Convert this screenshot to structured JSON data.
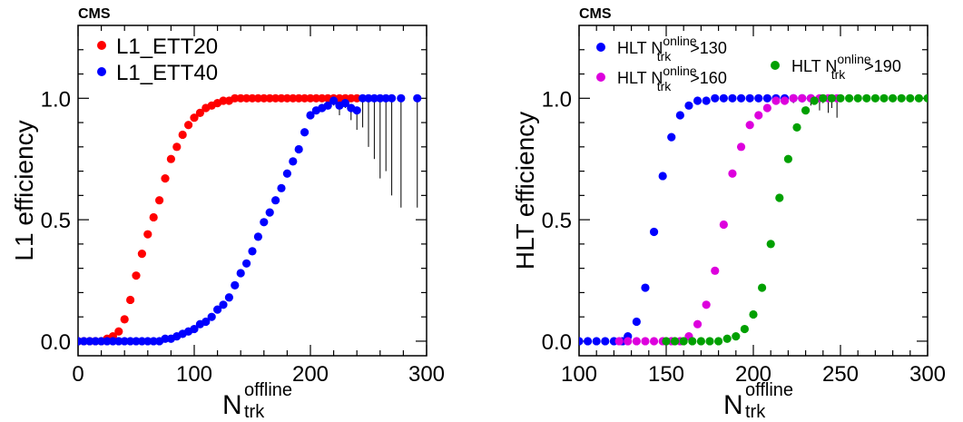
{
  "chart_data": [
    {
      "type": "scatter",
      "label": "CMS",
      "xlabel": "N",
      "xlabel_sub": "trk",
      "xlabel_sup": "offline",
      "ylabel": "L1 efficiency",
      "xlim": [
        0,
        300
      ],
      "ylim": [
        -0.06,
        1.3
      ],
      "xticks": [
        0,
        100,
        200,
        300
      ],
      "yticks": [
        0.0,
        0.5,
        1.0
      ],
      "xtick_labels": [
        "0",
        "100",
        "200",
        "300"
      ],
      "ytick_labels": [
        "0.0",
        "0.5",
        "1.0"
      ],
      "grid": false,
      "legend_position": "top-left",
      "series": [
        {
          "name": "L1_ETT20",
          "color": "#ff0000",
          "x": [
            0,
            5,
            10,
            15,
            20,
            25,
            30,
            35,
            40,
            45,
            50,
            55,
            60,
            65,
            70,
            75,
            80,
            85,
            90,
            95,
            100,
            105,
            110,
            115,
            120,
            125,
            130,
            135,
            140,
            145,
            150,
            155,
            160,
            165,
            170,
            175,
            180,
            185,
            190,
            195,
            200,
            205,
            210,
            215,
            220,
            225,
            230,
            235,
            240
          ],
          "y": [
            0.0,
            0.0,
            0.0,
            0.0,
            0.0,
            0.01,
            0.02,
            0.04,
            0.09,
            0.17,
            0.27,
            0.36,
            0.44,
            0.51,
            0.58,
            0.67,
            0.75,
            0.8,
            0.85,
            0.89,
            0.92,
            0.94,
            0.96,
            0.97,
            0.98,
            0.99,
            0.99,
            1.0,
            1.0,
            1.0,
            1.0,
            1.0,
            1.0,
            1.0,
            1.0,
            1.0,
            1.0,
            1.0,
            1.0,
            1.0,
            1.0,
            1.0,
            1.0,
            1.0,
            1.0,
            1.0,
            1.0,
            1.0,
            1.0
          ],
          "err_low": []
        },
        {
          "name": "L1_ETT40",
          "color": "#0000ff",
          "x": [
            0,
            5,
            10,
            15,
            20,
            25,
            30,
            35,
            40,
            45,
            50,
            55,
            60,
            65,
            70,
            75,
            80,
            85,
            90,
            95,
            100,
            105,
            110,
            115,
            120,
            125,
            130,
            135,
            140,
            145,
            150,
            155,
            160,
            165,
            170,
            175,
            180,
            185,
            190,
            195,
            200,
            205,
            210,
            215,
            220,
            225,
            230,
            235,
            240,
            245,
            250,
            255,
            260,
            265,
            270,
            278,
            292
          ],
          "y": [
            0.0,
            0.0,
            0.0,
            0.0,
            0.0,
            0.0,
            0.0,
            0.0,
            0.0,
            0.0,
            0.0,
            0.0,
            0.0,
            0.0,
            0.0,
            0.01,
            0.01,
            0.02,
            0.03,
            0.04,
            0.05,
            0.07,
            0.08,
            0.1,
            0.13,
            0.15,
            0.18,
            0.23,
            0.28,
            0.32,
            0.37,
            0.43,
            0.49,
            0.53,
            0.58,
            0.63,
            0.69,
            0.74,
            0.79,
            0.86,
            0.93,
            0.95,
            0.96,
            0.97,
            0.99,
            0.97,
            0.98,
            0.96,
            0.95,
            1.0,
            1.0,
            1.0,
            1.0,
            1.0,
            1.0,
            1.0,
            1.0
          ],
          "err_low": [
            0,
            0,
            0,
            0,
            0,
            0,
            0,
            0,
            0,
            0,
            0,
            0,
            0,
            0,
            0,
            0,
            0,
            0,
            0,
            0,
            0,
            0,
            0,
            0,
            0,
            0,
            0,
            0,
            0,
            0,
            0,
            0,
            0,
            0,
            0,
            0,
            0,
            0,
            0,
            0,
            0,
            0,
            0,
            0,
            0.02,
            0.04,
            0.02,
            0.05,
            0.08,
            0.12,
            0.2,
            0.25,
            0.33,
            0.3,
            0.4,
            0.45,
            0.45
          ]
        }
      ]
    },
    {
      "type": "scatter",
      "label": "CMS",
      "xlabel": "N",
      "xlabel_sub": "trk",
      "xlabel_sup": "offline",
      "ylabel": "HLT efficiency",
      "xlim": [
        100,
        300
      ],
      "ylim": [
        -0.06,
        1.3
      ],
      "xticks": [
        100,
        150,
        200,
        250,
        300
      ],
      "yticks": [
        0.0,
        0.5,
        1.0
      ],
      "xtick_labels": [
        "100",
        "150",
        "200",
        "250",
        "300"
      ],
      "ytick_labels": [
        "0.0",
        "0.5",
        "1.0"
      ],
      "grid": false,
      "legend_position": "top",
      "series": [
        {
          "name": "HLT N",
          "name_sub": "trk",
          "name_sup": "online",
          "name_suffix": ">130",
          "color": "#0000ff",
          "x": [
            100,
            105,
            110,
            115,
            120,
            125,
            128,
            133,
            138,
            143,
            148,
            153,
            158,
            163,
            168,
            173,
            178,
            183,
            188,
            193,
            198,
            203,
            208,
            213,
            218,
            223,
            228,
            233
          ],
          "y": [
            0.0,
            0.0,
            0.0,
            0.0,
            0.0,
            0.0,
            0.02,
            0.08,
            0.22,
            0.45,
            0.68,
            0.84,
            0.93,
            0.97,
            0.99,
            0.99,
            1.0,
            1.0,
            1.0,
            1.0,
            1.0,
            1.0,
            1.0,
            1.0,
            1.0,
            1.0,
            1.0,
            1.0
          ],
          "err_low": []
        },
        {
          "name": "HLT N",
          "name_sub": "trk",
          "name_sup": "online",
          "name_suffix": ">160",
          "color": "#dd00dd",
          "x": [
            123,
            128,
            133,
            138,
            143,
            148,
            153,
            158,
            163,
            168,
            173,
            178,
            183,
            188,
            193,
            198,
            203,
            208,
            213,
            218,
            223,
            228,
            233,
            238,
            243,
            248
          ],
          "y": [
            0.0,
            0.0,
            0.0,
            0.0,
            0.0,
            0.0,
            0.0,
            0.0,
            0.02,
            0.07,
            0.15,
            0.29,
            0.48,
            0.69,
            0.8,
            0.89,
            0.93,
            0.96,
            0.99,
            0.99,
            1.0,
            1.0,
            1.0,
            1.0,
            1.0,
            1.0
          ],
          "err_low": [
            0,
            0,
            0,
            0,
            0,
            0,
            0,
            0,
            0,
            0,
            0,
            0,
            0,
            0,
            0,
            0,
            0,
            0,
            0,
            0,
            0.02,
            0,
            0.03,
            0.05,
            0.06,
            0.08
          ]
        },
        {
          "name": "HLT N",
          "name_sub": "trk",
          "name_sup": "online",
          "name_suffix": ">190",
          "color": "#00a000",
          "x": [
            150,
            155,
            160,
            165,
            170,
            175,
            180,
            185,
            190,
            195,
            200,
            205,
            210,
            215,
            220,
            225,
            230,
            235,
            240,
            245,
            250,
            255,
            260,
            265,
            270,
            275,
            280,
            285,
            290,
            295,
            300
          ],
          "y": [
            0.0,
            0.0,
            0.0,
            0.0,
            0.0,
            0.0,
            0.0,
            0.01,
            0.02,
            0.05,
            0.11,
            0.22,
            0.4,
            0.59,
            0.75,
            0.88,
            0.95,
            0.99,
            1.0,
            1.0,
            1.0,
            1.0,
            1.0,
            1.0,
            1.0,
            1.0,
            1.0,
            1.0,
            1.0,
            1.0,
            1.0
          ],
          "err_low": [
            0,
            0,
            0,
            0,
            0,
            0,
            0,
            0,
            0,
            0,
            0,
            0,
            0,
            0,
            0,
            0,
            0,
            0,
            0.02,
            0.04,
            0,
            0,
            0,
            0,
            0,
            0,
            0,
            0,
            0,
            0,
            0
          ]
        }
      ]
    }
  ]
}
